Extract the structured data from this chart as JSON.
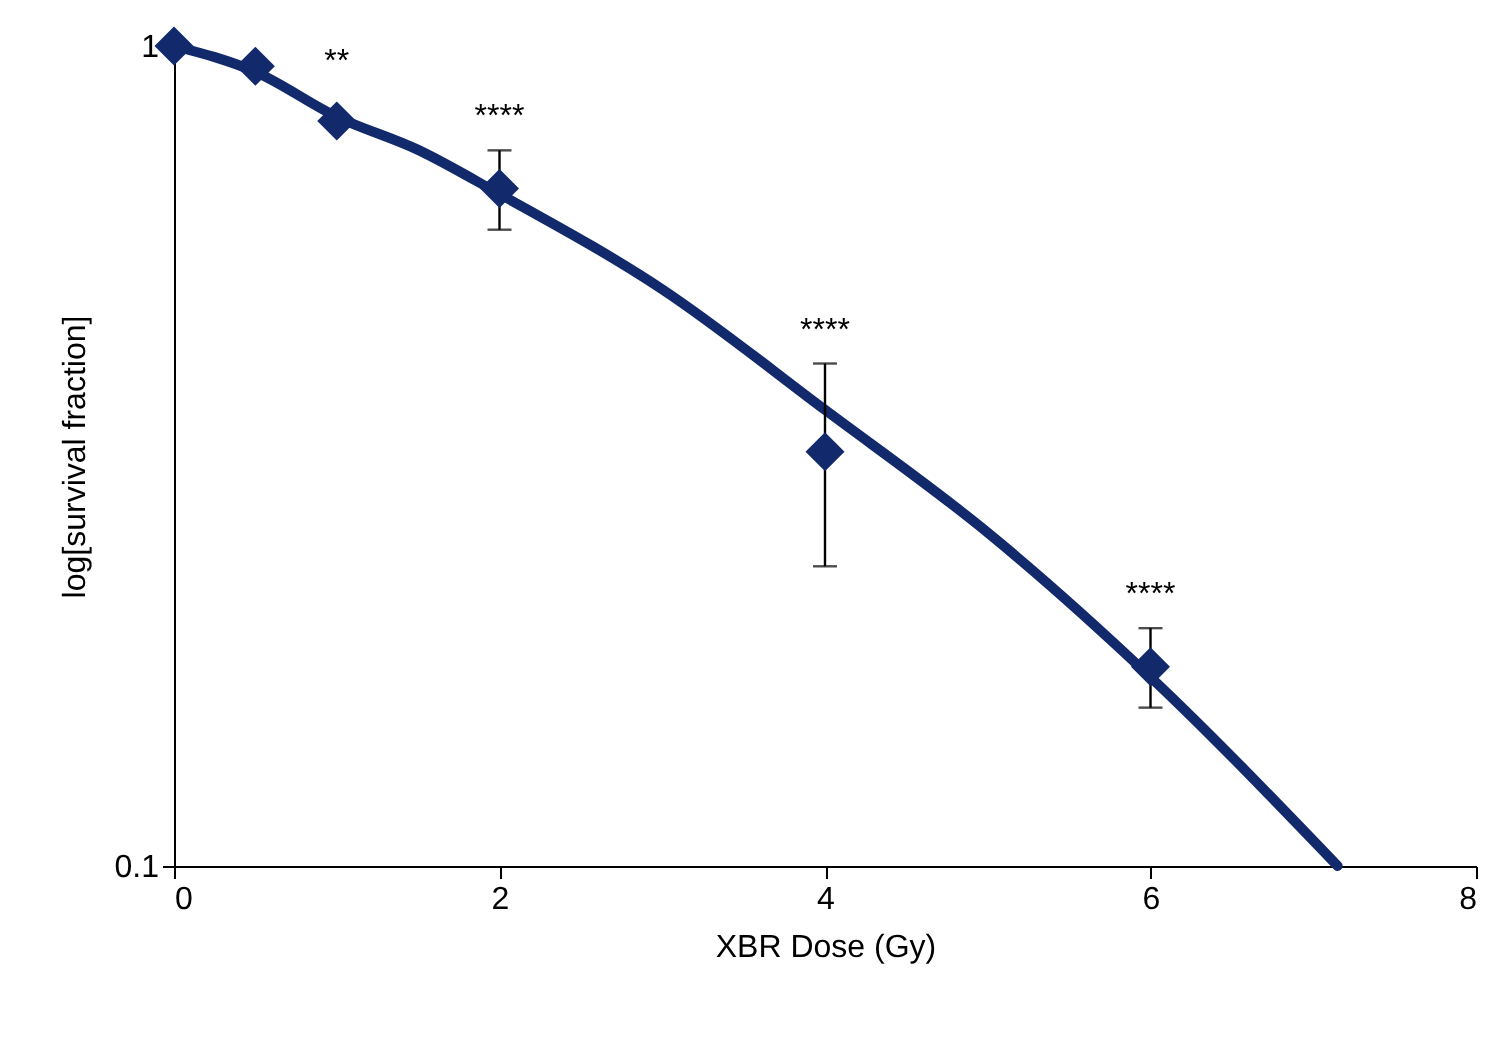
{
  "chart_data": {
    "type": "scatter",
    "xlabel": "XBR Dose (Gy)",
    "ylabel": "log[survival fraction]",
    "log": "y",
    "xlim": [
      0,
      8
    ],
    "xticks": [
      0,
      2,
      4,
      6,
      8
    ],
    "ylim": [
      0.1,
      1
    ],
    "yticks": [
      0.1,
      1
    ],
    "grid": false,
    "series": [
      {
        "type": "line",
        "color": "#12296b",
        "x": [
          0,
          0.5,
          1,
          1.5,
          2,
          3,
          4,
          5,
          6,
          7.15
        ],
        "values": [
          1,
          0.93,
          0.82,
          0.747,
          0.66,
          0.505,
          0.36,
          0.255,
          0.17,
          0.1
        ]
      },
      {
        "type": "scatter",
        "color": "#12296b",
        "marker": "diamond",
        "x": [
          0,
          0.5,
          1,
          2,
          4,
          6
        ],
        "values": [
          1,
          0.945,
          0.81,
          0.67,
          0.32,
          0.175
        ],
        "errors": [
          null,
          null,
          null,
          [
            0.597,
            0.746
          ],
          [
            0.232,
            0.41
          ],
          [
            0.156,
            0.195
          ]
        ]
      }
    ],
    "annotations": [
      "**",
      "****",
      "****",
      "****"
    ]
  }
}
